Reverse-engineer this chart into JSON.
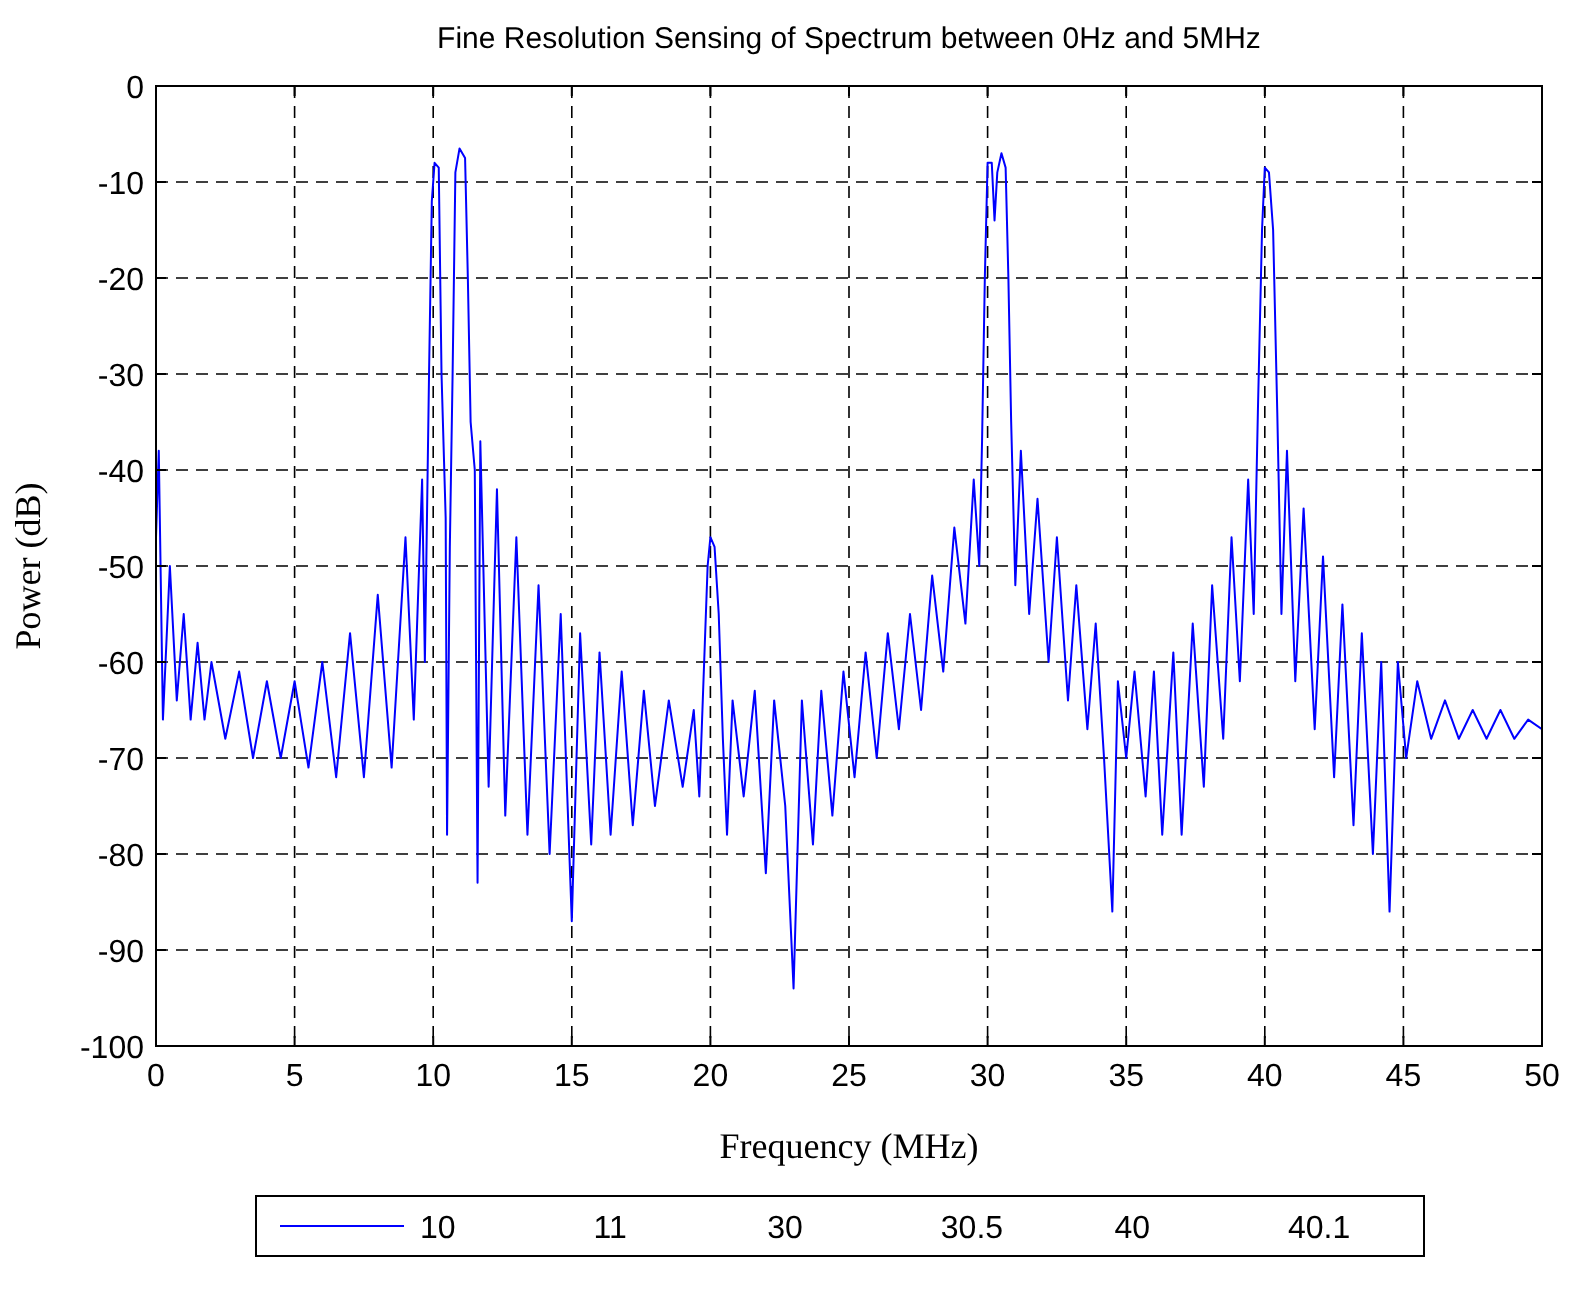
{
  "chart_data": {
    "type": "line",
    "title": "Fine Resolution Sensing of Spectrum between 0Hz and 5MHz",
    "xlabel": "Frequency (MHz)",
    "ylabel": "Power (dB)",
    "xlim": [
      0,
      50
    ],
    "xticks": [
      0,
      5,
      10,
      15,
      20,
      25,
      30,
      35,
      40,
      45,
      50
    ],
    "ylim": [
      -100,
      0
    ],
    "yticks": [
      -100,
      -90,
      -80,
      -70,
      -60,
      -50,
      -40,
      -30,
      -20,
      -10,
      0
    ],
    "grid": true,
    "legend": "bottom",
    "line_style": "solid",
    "marker": "none",
    "series": [
      {
        "name": "10",
        "color": "#0000ff",
        "x": [
          0,
          0.1,
          0.25,
          0.5,
          0.75,
          1,
          1.25,
          1.5,
          1.75,
          2,
          2.5,
          3,
          3.5,
          4,
          4.5,
          5,
          5.5,
          6,
          6.5,
          7,
          7.5,
          8,
          8.5,
          9,
          9.3,
          9.6,
          9.7,
          9.85,
          9.95,
          10.05,
          10.2,
          10.3,
          10.45,
          10.5,
          10.6,
          10.7,
          10.8,
          10.95,
          11.15,
          11.25,
          11.35,
          11.5,
          11.6,
          11.7,
          12,
          12.3,
          12.6,
          13,
          13.4,
          13.8,
          14.2,
          14.6,
          15,
          15.3,
          15.7,
          16,
          16.4,
          16.8,
          17.2,
          17.6,
          18,
          18.5,
          19,
          19.4,
          19.6,
          19.8,
          19.9,
          20,
          20.15,
          20.3,
          20.45,
          20.6,
          20.8,
          21.2,
          21.6,
          22,
          22.3,
          22.7,
          23,
          23.3,
          23.7,
          24,
          24.4,
          24.8,
          25.2,
          25.6,
          26,
          26.4,
          26.8,
          27.2,
          27.6,
          28,
          28.4,
          28.8,
          29.2,
          29.5,
          29.7,
          29.8,
          29.9,
          30,
          30.15,
          30.25,
          30.35,
          30.5,
          30.65,
          30.75,
          30.85,
          31,
          31.2,
          31.5,
          31.8,
          32.2,
          32.5,
          32.9,
          33.2,
          33.6,
          33.9,
          34.2,
          34.5,
          34.7,
          35,
          35.3,
          35.7,
          36,
          36.3,
          36.7,
          37,
          37.4,
          37.8,
          38.1,
          38.5,
          38.8,
          39.1,
          39.4,
          39.6,
          39.75,
          39.9,
          40,
          40.15,
          40.3,
          40.45,
          40.6,
          40.8,
          41.1,
          41.4,
          41.8,
          42.1,
          42.5,
          42.8,
          43.2,
          43.5,
          43.9,
          44.2,
          44.5,
          44.8,
          45.1,
          45.5,
          46,
          46.5,
          47,
          47.5,
          48,
          48.5,
          49,
          49.5,
          50
        ],
        "values": [
          -47,
          -38,
          -66,
          -50,
          -64,
          -55,
          -66,
          -58,
          -66,
          -60,
          -68,
          -61,
          -70,
          -62,
          -70,
          -62,
          -71,
          -60,
          -72,
          -57,
          -72,
          -53,
          -71,
          -47,
          -66,
          -41,
          -60,
          -30,
          -12,
          -8,
          -8.5,
          -30,
          -45,
          -78,
          -48,
          -30,
          -9,
          -6.5,
          -7.5,
          -20,
          -35,
          -40,
          -83,
          -37,
          -73,
          -42,
          -76,
          -47,
          -78,
          -52,
          -80,
          -55,
          -87,
          -57,
          -79,
          -59,
          -78,
          -61,
          -77,
          -63,
          -75,
          -64,
          -73,
          -65,
          -74,
          -58,
          -50,
          -47,
          -48,
          -55,
          -68,
          -78,
          -64,
          -74,
          -63,
          -82,
          -64,
          -75,
          -94,
          -64,
          -79,
          -63,
          -76,
          -61,
          -72,
          -59,
          -70,
          -57,
          -67,
          -55,
          -65,
          -51,
          -61,
          -46,
          -56,
          -41,
          -50,
          -37,
          -20,
          -8,
          -8,
          -14,
          -9,
          -7,
          -8.5,
          -20,
          -35,
          -52,
          -38,
          -55,
          -43,
          -60,
          -47,
          -64,
          -52,
          -67,
          -56,
          -70,
          -86,
          -62,
          -70,
          -61,
          -74,
          -61,
          -78,
          -59,
          -78,
          -56,
          -73,
          -52,
          -68,
          -47,
          -62,
          -41,
          -55,
          -34,
          -15,
          -8.5,
          -9,
          -15,
          -34,
          -55,
          -38,
          -62,
          -44,
          -67,
          -49,
          -72,
          -54,
          -77,
          -57,
          -80,
          -60,
          -86,
          -60,
          -70,
          -62,
          -68,
          -64,
          -68,
          -65,
          -68,
          -65,
          -68,
          -66,
          -67
        ]
      },
      {
        "name": "11"
      },
      {
        "name": "30"
      },
      {
        "name": "30.5"
      },
      {
        "name": "40"
      },
      {
        "name": "40.1"
      }
    ]
  }
}
